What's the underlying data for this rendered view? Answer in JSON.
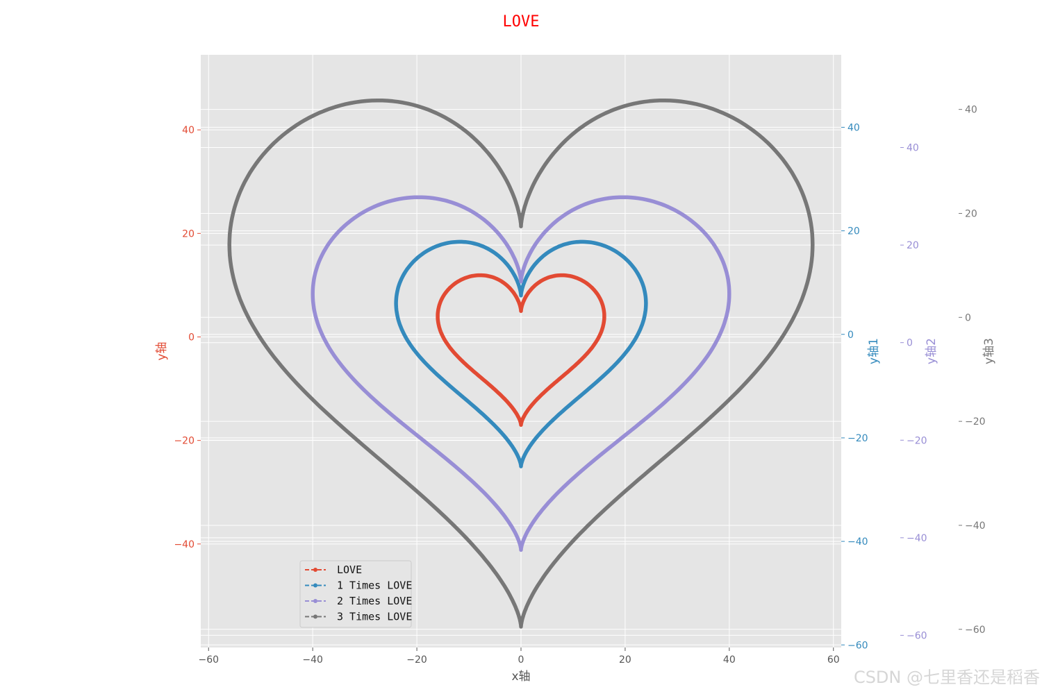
{
  "colors": {
    "background": "#ffffff",
    "plot_background": "#e5e5e5",
    "grid": "#ffffff",
    "title": "#ff0000"
  },
  "watermark": "CSDN @七里香还是稻香",
  "chart_data": {
    "type": "line",
    "title": "LOVE",
    "xlabel": "x轴",
    "xlim": [
      -61.5,
      61.5
    ],
    "xticks": [
      -60,
      -40,
      -20,
      0,
      20,
      40,
      60
    ],
    "grid": true,
    "legend_position": "lower left",
    "axes": [
      {
        "id": "y",
        "label": "y轴",
        "color": "#e24a33",
        "side": "left",
        "ylim": [
          -60,
          54.5
        ],
        "ticks": [
          -40,
          -20,
          0,
          20,
          40
        ]
      },
      {
        "id": "y1",
        "label": "y轴1",
        "color": "#348abd",
        "side": "right",
        "ylim": [
          -60.5,
          54
        ],
        "ticks": [
          -60,
          -40,
          -20,
          0,
          20,
          40
        ]
      },
      {
        "id": "y2",
        "label": "y轴2",
        "color": "#988ed5",
        "side": "right",
        "ylim": [
          -62.5,
          59
        ],
        "ticks": [
          -60,
          -40,
          -20,
          0,
          20,
          40
        ]
      },
      {
        "id": "y3",
        "label": "y轴3",
        "color": "#777777",
        "side": "right",
        "ylim": [
          -63.5,
          50.5
        ],
        "ticks": [
          -60,
          -40,
          -20,
          0,
          20,
          40
        ]
      }
    ],
    "series": [
      {
        "name": "LOVE",
        "scale": 1,
        "color": "#e24a33",
        "axis": "y"
      },
      {
        "name": "1 Times LOVE",
        "scale": 1.5,
        "color": "#348abd",
        "axis": "y1"
      },
      {
        "name": "2 Times LOVE",
        "scale": 2.5,
        "color": "#988ed5",
        "axis": "y2"
      },
      {
        "name": "3 Times LOVE",
        "scale": 3.5,
        "color": "#777777",
        "axis": "y3"
      }
    ],
    "curve": {
      "equation": "x = 16 sin^3(t), y = 13 cos(t) - 5 cos(2t) - 2 cos(3t) - cos(4t), multiplied by scale",
      "t_range": [
        0,
        6.2832
      ]
    }
  }
}
